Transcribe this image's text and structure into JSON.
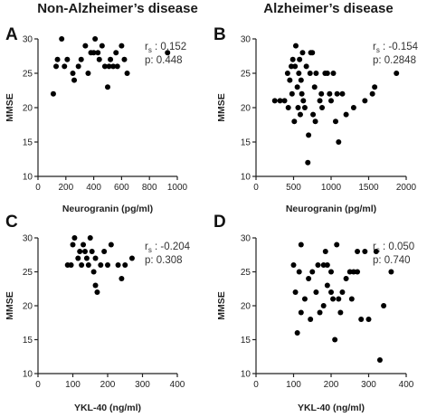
{
  "headers": {
    "left": "Non-Alzheimer’s disease",
    "right": "Alzheimer’s disease"
  },
  "chart_data": [
    {
      "panel": "A",
      "type": "scatter",
      "xlabel": "Neurogranin (pg/ml)",
      "ylabel": "MMSE",
      "xlim": [
        0,
        1000
      ],
      "ylim": [
        10,
        30
      ],
      "xticks": [
        0,
        200,
        400,
        600,
        800,
        1000
      ],
      "yticks": [
        10,
        15,
        20,
        25,
        30
      ],
      "stats": {
        "rs_label": "r",
        "rs_sub": "s",
        "rs_value": " : 0.152",
        "p_label": "p: 0.448"
      },
      "points": [
        [
          110,
          22
        ],
        [
          130,
          26
        ],
        [
          140,
          27
        ],
        [
          170,
          30
        ],
        [
          190,
          26
        ],
        [
          210,
          27
        ],
        [
          250,
          25
        ],
        [
          260,
          24
        ],
        [
          290,
          26
        ],
        [
          310,
          27
        ],
        [
          340,
          29
        ],
        [
          360,
          25
        ],
        [
          380,
          28
        ],
        [
          400,
          28
        ],
        [
          410,
          30
        ],
        [
          430,
          28
        ],
        [
          440,
          27
        ],
        [
          460,
          29
        ],
        [
          480,
          26
        ],
        [
          500,
          23
        ],
        [
          510,
          26
        ],
        [
          520,
          27
        ],
        [
          540,
          26
        ],
        [
          560,
          28
        ],
        [
          570,
          26
        ],
        [
          600,
          29
        ],
        [
          620,
          27
        ],
        [
          640,
          25
        ],
        [
          930,
          28
        ]
      ]
    },
    {
      "panel": "B",
      "type": "scatter",
      "xlabel": "Neurogranin (pg/ml)",
      "ylabel": "MMSE",
      "xlim": [
        0,
        2000
      ],
      "ylim": [
        10,
        30
      ],
      "xticks": [
        0,
        500,
        1000,
        1500,
        2000
      ],
      "yticks": [
        10,
        15,
        20,
        25,
        30
      ],
      "stats": {
        "rs_label": "r",
        "rs_sub": "s",
        "rs_value": " : -0.154",
        "p_label": "p: 0.2848"
      },
      "points": [
        [
          250,
          21
        ],
        [
          320,
          21
        ],
        [
          380,
          21
        ],
        [
          420,
          25
        ],
        [
          430,
          20
        ],
        [
          450,
          24
        ],
        [
          470,
          26
        ],
        [
          480,
          22
        ],
        [
          490,
          27
        ],
        [
          510,
          18
        ],
        [
          520,
          26
        ],
        [
          530,
          29
        ],
        [
          550,
          23
        ],
        [
          560,
          20
        ],
        [
          570,
          25
        ],
        [
          580,
          27
        ],
        [
          590,
          19
        ],
        [
          600,
          24
        ],
        [
          610,
          22
        ],
        [
          620,
          28
        ],
        [
          630,
          21
        ],
        [
          650,
          20
        ],
        [
          670,
          26
        ],
        [
          690,
          12
        ],
        [
          700,
          16
        ],
        [
          720,
          25
        ],
        [
          730,
          28
        ],
        [
          750,
          28
        ],
        [
          760,
          19
        ],
        [
          780,
          23
        ],
        [
          790,
          18
        ],
        [
          800,
          25
        ],
        [
          850,
          21
        ],
        [
          870,
          22
        ],
        [
          880,
          20
        ],
        [
          920,
          25
        ],
        [
          950,
          25
        ],
        [
          980,
          22
        ],
        [
          1000,
          21
        ],
        [
          1030,
          25
        ],
        [
          1060,
          18
        ],
        [
          1080,
          22
        ],
        [
          1100,
          15
        ],
        [
          1150,
          22
        ],
        [
          1200,
          19
        ],
        [
          1300,
          20
        ],
        [
          1450,
          21
        ],
        [
          1550,
          22
        ],
        [
          1580,
          23
        ],
        [
          1870,
          25
        ]
      ]
    },
    {
      "panel": "C",
      "type": "scatter",
      "xlabel": "YKL-40 (ng/ml)",
      "ylabel": "MMSE",
      "xlim": [
        0,
        400
      ],
      "ylim": [
        10,
        30
      ],
      "xticks": [
        0,
        100,
        200,
        300,
        400
      ],
      "yticks": [
        10,
        15,
        20,
        25,
        30
      ],
      "stats": {
        "rs_label": "r",
        "rs_sub": "s",
        "rs_value": " : -0.204",
        "p_label": "p: 0.308"
      },
      "points": [
        [
          85,
          26
        ],
        [
          95,
          26
        ],
        [
          100,
          29
        ],
        [
          105,
          30
        ],
        [
          115,
          27
        ],
        [
          120,
          28
        ],
        [
          125,
          26
        ],
        [
          130,
          29
        ],
        [
          135,
          28
        ],
        [
          140,
          27
        ],
        [
          145,
          26
        ],
        [
          150,
          30
        ],
        [
          155,
          28
        ],
        [
          160,
          25
        ],
        [
          165,
          23
        ],
        [
          165,
          27
        ],
        [
          170,
          22
        ],
        [
          180,
          26
        ],
        [
          190,
          28
        ],
        [
          200,
          26
        ],
        [
          210,
          29
        ],
        [
          230,
          26
        ],
        [
          240,
          24
        ],
        [
          250,
          26
        ],
        [
          270,
          27
        ]
      ]
    },
    {
      "panel": "D",
      "type": "scatter",
      "xlabel": "YKL-40 (ng/ml)",
      "ylabel": "MMSE",
      "xlim": [
        0,
        400
      ],
      "ylim": [
        10,
        30
      ],
      "xticks": [
        0,
        100,
        200,
        300,
        400
      ],
      "yticks": [
        10,
        15,
        20,
        25,
        30
      ],
      "stats": {
        "rs_label": "r",
        "rs_sub": "s",
        "rs_value": " : 0.050",
        "p_label": "p: 0.740"
      },
      "points": [
        [
          100,
          26
        ],
        [
          105,
          22
        ],
        [
          110,
          16
        ],
        [
          115,
          25
        ],
        [
          120,
          19
        ],
        [
          120,
          29
        ],
        [
          130,
          21
        ],
        [
          140,
          24
        ],
        [
          145,
          18
        ],
        [
          150,
          25
        ],
        [
          160,
          22
        ],
        [
          165,
          26
        ],
        [
          170,
          19
        ],
        [
          180,
          20
        ],
        [
          180,
          26
        ],
        [
          185,
          28
        ],
        [
          190,
          23
        ],
        [
          190,
          26
        ],
        [
          200,
          22
        ],
        [
          200,
          25
        ],
        [
          205,
          21
        ],
        [
          210,
          15
        ],
        [
          215,
          29
        ],
        [
          220,
          21
        ],
        [
          225,
          19
        ],
        [
          230,
          22
        ],
        [
          240,
          24
        ],
        [
          250,
          25
        ],
        [
          255,
          21
        ],
        [
          260,
          25
        ],
        [
          270,
          25
        ],
        [
          270,
          28
        ],
        [
          280,
          18
        ],
        [
          290,
          28
        ],
        [
          300,
          18
        ],
        [
          320,
          28
        ],
        [
          330,
          12
        ],
        [
          340,
          20
        ],
        [
          360,
          25
        ]
      ]
    }
  ]
}
